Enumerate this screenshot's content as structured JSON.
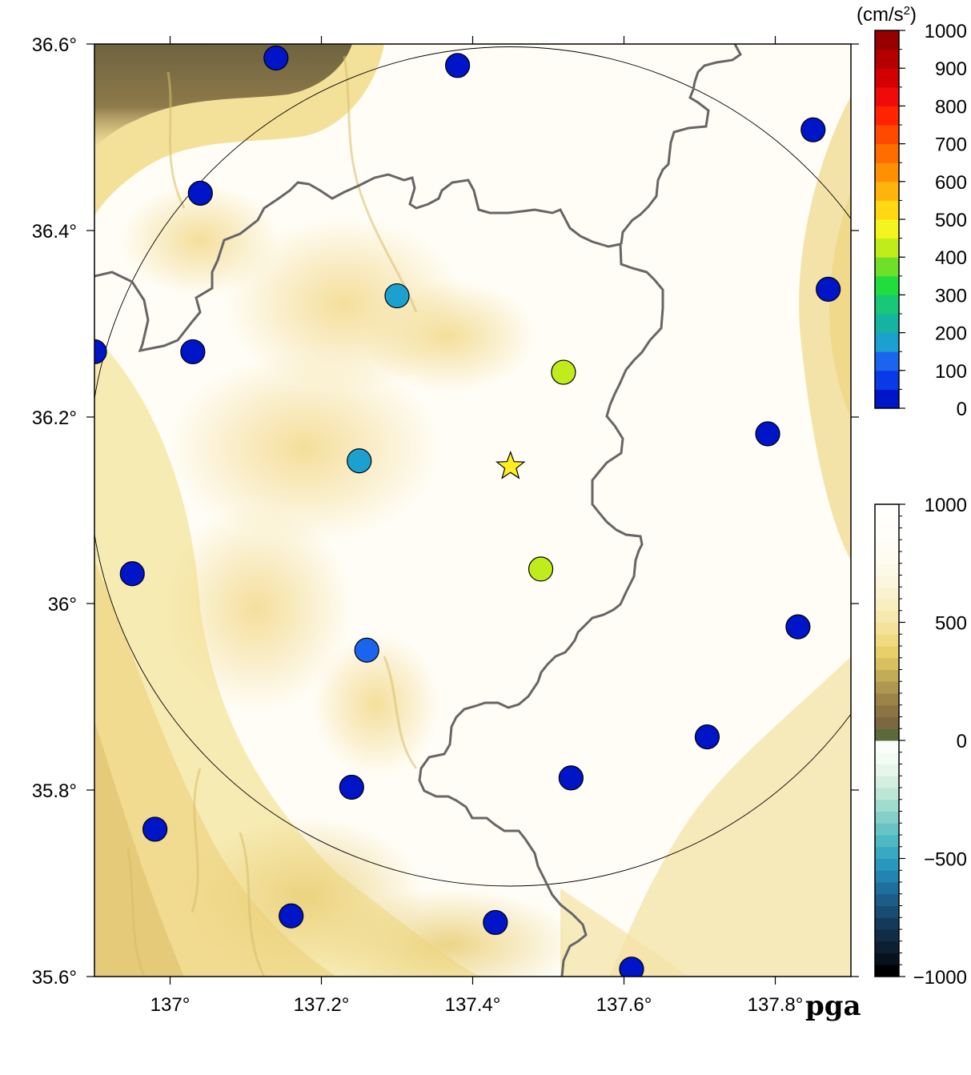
{
  "map": {
    "tag": "pga",
    "lon_range": [
      136.9,
      137.9
    ],
    "lat_range": [
      35.6,
      36.6
    ],
    "lon_ticks": [
      {
        "value": 137.0,
        "label": "137°"
      },
      {
        "value": 137.2,
        "label": "137.2°"
      },
      {
        "value": 137.4,
        "label": "137.4°"
      },
      {
        "value": 137.6,
        "label": "137.6°"
      },
      {
        "value": 137.8,
        "label": "137.8°"
      }
    ],
    "lat_ticks": [
      {
        "value": 36.6,
        "label": "36.6°"
      },
      {
        "value": 36.4,
        "label": "36.4°"
      },
      {
        "value": 36.2,
        "label": "36.2°"
      },
      {
        "value": 36.0,
        "label": "36°"
      },
      {
        "value": 35.8,
        "label": "35.8°"
      },
      {
        "value": 35.6,
        "label": "35.6°"
      }
    ],
    "epicenter": {
      "lon": 137.45,
      "lat": 36.147,
      "color": "#ffee22",
      "icon": "star-icon"
    },
    "circle": {
      "center_lon": 137.45,
      "center_lat": 36.147,
      "radius_lat_deg": 0.45
    },
    "boundary_color": "#666666",
    "stations": [
      {
        "lon": 137.14,
        "lat": 36.585,
        "pga": 10
      },
      {
        "lon": 137.38,
        "lat": 36.577,
        "pga": 10
      },
      {
        "lon": 137.85,
        "lat": 36.508,
        "pga": 10
      },
      {
        "lon": 137.04,
        "lat": 36.44,
        "pga": 10
      },
      {
        "lon": 137.87,
        "lat": 36.337,
        "pga": 10
      },
      {
        "lon": 137.3,
        "lat": 36.33,
        "pga": 190
      },
      {
        "lon": 136.9,
        "lat": 36.27,
        "pga": 10
      },
      {
        "lon": 137.03,
        "lat": 36.27,
        "pga": 10
      },
      {
        "lon": 137.52,
        "lat": 36.248,
        "pga": 440
      },
      {
        "lon": 137.79,
        "lat": 36.182,
        "pga": 10
      },
      {
        "lon": 137.25,
        "lat": 36.153,
        "pga": 190
      },
      {
        "lon": 137.49,
        "lat": 36.037,
        "pga": 440
      },
      {
        "lon": 136.95,
        "lat": 36.032,
        "pga": 10
      },
      {
        "lon": 137.83,
        "lat": 35.975,
        "pga": 10
      },
      {
        "lon": 137.26,
        "lat": 35.95,
        "pga": 100
      },
      {
        "lon": 137.71,
        "lat": 35.857,
        "pga": 40
      },
      {
        "lon": 137.53,
        "lat": 35.813,
        "pga": 40
      },
      {
        "lon": 137.24,
        "lat": 35.803,
        "pga": 10
      },
      {
        "lon": 136.98,
        "lat": 35.758,
        "pga": 10
      },
      {
        "lon": 137.16,
        "lat": 35.665,
        "pga": 10
      },
      {
        "lon": 137.43,
        "lat": 35.658,
        "pga": 10
      },
      {
        "lon": 137.61,
        "lat": 35.608,
        "pga": 10
      }
    ]
  },
  "pga_colorbar": {
    "unit_prefix": "(cm/s",
    "unit_sup": "2",
    "unit_suffix": ")",
    "min": 0,
    "max": 1000,
    "labels": [
      "1000",
      "900",
      "800",
      "700",
      "600",
      "500",
      "400",
      "300",
      "200",
      "100",
      "0"
    ],
    "colors": [
      "#0014c8",
      "#0a3ae8",
      "#1a64ee",
      "#1ca0d0",
      "#14b4a0",
      "#18c878",
      "#20dc3c",
      "#6ee02a",
      "#c0ec1c",
      "#f4f41e",
      "#ffd814",
      "#ffb40c",
      "#ff9004",
      "#ff6c00",
      "#ff4800",
      "#ff2400",
      "#f00a0a",
      "#d20000",
      "#b40000",
      "#960000"
    ]
  },
  "elev_colorbar": {
    "min": -1000,
    "max": 1000,
    "labels": [
      "1000",
      "500",
      "0",
      "−500",
      "−1000"
    ],
    "label_values": [
      1000,
      500,
      0,
      -500,
      -1000
    ],
    "neg_colors": [
      "#000000",
      "#06121e",
      "#0c2032",
      "#102c46",
      "#143a5a",
      "#184c72",
      "#1e5c88",
      "#1e6e9e",
      "#2284b0",
      "#2898bc",
      "#36aac0",
      "#4cb8c2",
      "#66c4c4",
      "#84d0c8",
      "#a0dcce",
      "#bce6d6",
      "#d4eedf",
      "#e6f6ea",
      "#f2fbf4",
      "#fafefb"
    ],
    "pos_colors": [
      "#5a6a3c",
      "#7c6840",
      "#8c7444",
      "#9c8448",
      "#ae9850",
      "#c2ac58",
      "#d8c060",
      "#e8cf6a",
      "#f0da80",
      "#f4e29a",
      "#f6e8ae",
      "#f8eec0",
      "#faf2d0",
      "#fcf6de",
      "#fdf9e8",
      "#fefbf0",
      "#fefcf4",
      "#fffef8",
      "#fffefb",
      "#fffffe"
    ]
  }
}
